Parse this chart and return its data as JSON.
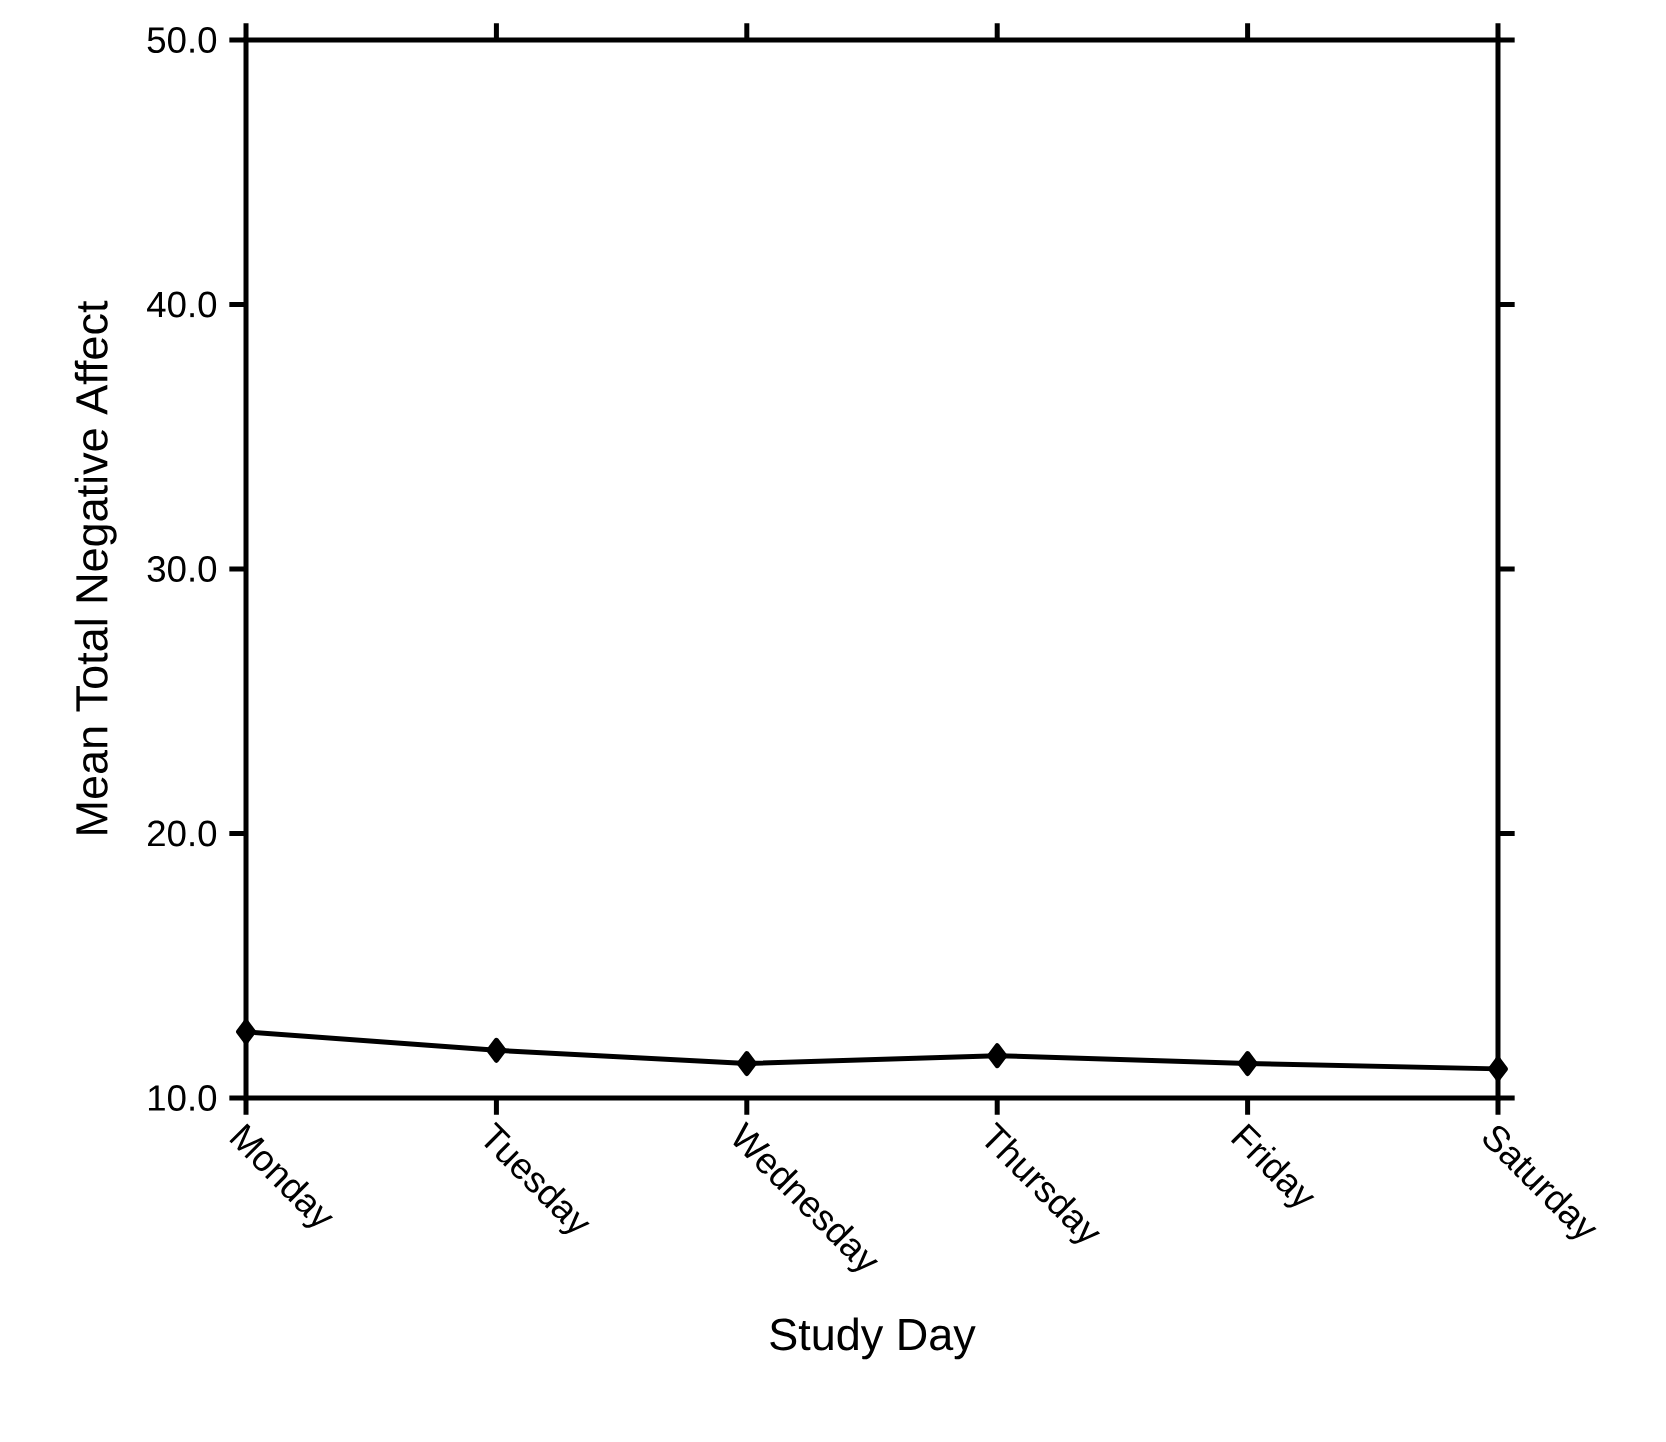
{
  "chart_data": {
    "type": "line",
    "xlabel": "Study Day",
    "ylabel": "Mean Total Negative Affect",
    "categories": [
      "Monday",
      "Tuesday",
      "Wednesday",
      "Thursday",
      "Friday",
      "Saturday"
    ],
    "series": [
      {
        "color": "#000000",
        "values": [
          12.5,
          11.8,
          11.3,
          11.6,
          11.3,
          11.1
        ]
      }
    ],
    "ylim": [
      10,
      50
    ],
    "yticks": [
      {
        "value": 10,
        "label": "10.0"
      },
      {
        "value": 20,
        "label": "20.0"
      },
      {
        "value": 30,
        "label": "30.0"
      },
      {
        "value": 40,
        "label": "40.0"
      },
      {
        "value": 50,
        "label": "50.0"
      }
    ],
    "marker": "diamond",
    "line_style": "solid"
  }
}
